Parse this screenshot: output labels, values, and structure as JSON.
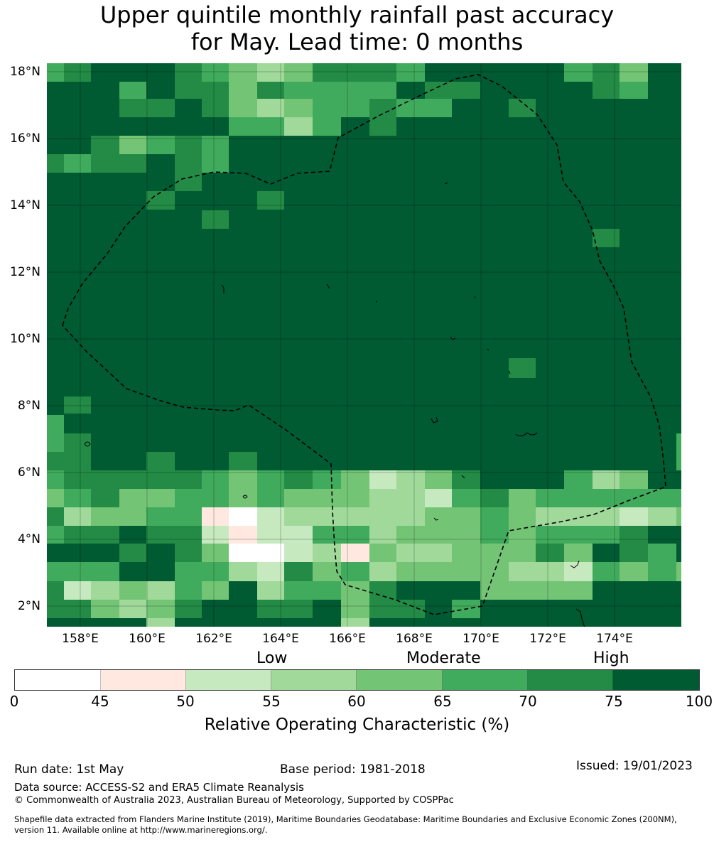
{
  "title": {
    "line1": "Upper quintile monthly rainfall past accuracy",
    "line2": "for May. Lead time: 0 months"
  },
  "map": {
    "lat_labels": [
      "18°N",
      "16°N",
      "14°N",
      "12°N",
      "10°N",
      "8°N",
      "6°N",
      "4°N",
      "2°N"
    ],
    "lon_labels": [
      "158°E",
      "160°E",
      "162°E",
      "164°E",
      "166°E",
      "168°E",
      "170°E",
      "172°E",
      "174°E"
    ],
    "lat_values": [
      18,
      16,
      14,
      12,
      10,
      8,
      6,
      4,
      2
    ],
    "lon_values": [
      158,
      160,
      162,
      164,
      166,
      168,
      170,
      172,
      174
    ],
    "extent": {
      "lon_min": 157,
      "lon_max": 176,
      "lat_min": 1.4,
      "lat_max": 18.3
    },
    "background_color": "#005a32",
    "boundary_color": "#000000"
  },
  "legend": {
    "category_labels": [
      "Low",
      "Moderate",
      "High"
    ],
    "ticks": [
      "0",
      "45",
      "50",
      "55",
      "60",
      "65",
      "70",
      "75",
      "100"
    ],
    "colors": [
      "#ffffff",
      "#fee8df",
      "#c7e9c0",
      "#a1d99b",
      "#74c476",
      "#41ab5d",
      "#238b45",
      "#005a32"
    ],
    "title": "Relative Operating Characteristic (%)"
  },
  "footer": {
    "run_date": "Run date: 1st May",
    "base_period": "Base period: 1981-2018",
    "issued": "Issued: 19/01/2023",
    "data_source": "Data source: ACCESS-S2 and ERA5 Climate Reanalysis",
    "copyright": "© Commonwealth of Australia 2023, Australian Bureau of Meteorology, Supported by COSPPac",
    "shapefile_line1": "Shapefile data extracted from Flanders Marine Institute (2019), Maritime Boundaries Geodatabase: Maritime Boundaries and Exclusive Economic Zones (200NM),",
    "shapefile_line2": "version 11. Available online at http://www.marineregions.org/."
  }
}
